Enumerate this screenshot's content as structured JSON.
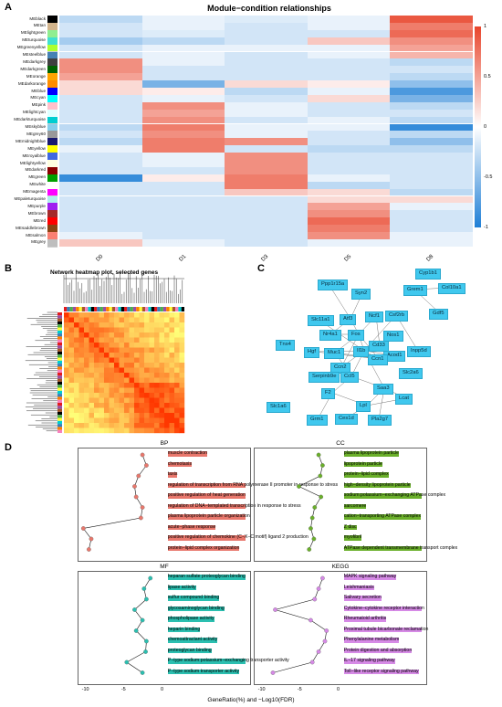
{
  "panelA": {
    "letter": "A",
    "title": "Module−condition relationships",
    "columns": [
      "D0",
      "D1",
      "D3",
      "D5",
      "D8"
    ],
    "modules": [
      {
        "name": "MEblack",
        "color": "#000000",
        "vals": [
          -0.3,
          -0.1,
          -0.15,
          -0.1,
          0.9
        ]
      },
      {
        "name": "MEtan",
        "color": "#d2b48c",
        "vals": [
          -0.2,
          -0.1,
          -0.2,
          -0.1,
          0.7
        ]
      },
      {
        "name": "MElightgreen",
        "color": "#90ee90",
        "vals": [
          -0.2,
          -0.15,
          -0.2,
          -0.2,
          0.8
        ]
      },
      {
        "name": "MEturquoise",
        "color": "#40e0d0",
        "vals": [
          -0.4,
          -0.3,
          -0.2,
          0.3,
          0.6
        ]
      },
      {
        "name": "MEgreenyellow",
        "color": "#adff2f",
        "vals": [
          -0.2,
          -0.1,
          -0.1,
          -0.1,
          0.5
        ]
      },
      {
        "name": "MEsteelblue",
        "color": "#4682b4",
        "vals": [
          -0.2,
          -0.1,
          -0.2,
          -0.1,
          0.4
        ]
      },
      {
        "name": "MEdarkgrey",
        "color": "#404040",
        "vals": [
          0.6,
          -0.1,
          -0.2,
          -0.2,
          -0.3
        ]
      },
      {
        "name": "MEdarkgreen",
        "color": "#006400",
        "vals": [
          0.6,
          -0.2,
          -0.2,
          -0.2,
          -0.2
        ]
      },
      {
        "name": "MEorange",
        "color": "#ffa500",
        "vals": [
          0.5,
          -0.2,
          -0.2,
          -0.2,
          -0.3
        ]
      },
      {
        "name": "MEdarkorange",
        "color": "#ff8c00",
        "vals": [
          0.2,
          -0.6,
          0.2,
          0.1,
          -0.5
        ]
      },
      {
        "name": "MEblue",
        "color": "#0000ff",
        "vals": [
          0.2,
          0.1,
          -0.3,
          -0.1,
          -0.8
        ]
      },
      {
        "name": "MEcyan",
        "color": "#00ffff",
        "vals": [
          -0.2,
          -0.1,
          -0.2,
          0.2,
          -0.6
        ]
      },
      {
        "name": "MEpink",
        "color": "#ffc0cb",
        "vals": [
          -0.2,
          0.6,
          -0.1,
          -0.2,
          -0.3
        ]
      },
      {
        "name": "MElightcyan",
        "color": "#e0ffff",
        "vals": [
          -0.2,
          0.5,
          -0.1,
          -0.2,
          -0.2
        ]
      },
      {
        "name": "MEdarkturquoise",
        "color": "#00ced1",
        "vals": [
          -0.2,
          0.6,
          -0.2,
          -0.1,
          -0.3
        ]
      },
      {
        "name": "MEskyblue",
        "color": "#87ceeb",
        "vals": [
          -0.3,
          0.7,
          -0.1,
          -0.1,
          -0.9
        ]
      },
      {
        "name": "MEgrey60",
        "color": "#999999",
        "vals": [
          -0.2,
          0.6,
          -0.1,
          -0.2,
          -0.3
        ]
      },
      {
        "name": "MEmidnightblue",
        "color": "#191970",
        "vals": [
          -0.3,
          0.7,
          0.6,
          -0.2,
          -0.5
        ]
      },
      {
        "name": "MEyellow",
        "color": "#ffff00",
        "vals": [
          -0.1,
          0.7,
          -0.2,
          -0.3,
          -0.3
        ]
      },
      {
        "name": "MEroyalblue",
        "color": "#4169e1",
        "vals": [
          -0.2,
          -0.1,
          0.6,
          -0.2,
          -0.2
        ]
      },
      {
        "name": "MElightyellow",
        "color": "#ffffe0",
        "vals": [
          -0.2,
          -0.1,
          0.6,
          -0.2,
          -0.2
        ]
      },
      {
        "name": "MEdarkred",
        "color": "#8b0000",
        "vals": [
          -0.2,
          -0.2,
          0.6,
          -0.2,
          -0.2
        ]
      },
      {
        "name": "MEgreen",
        "color": "#00a000",
        "vals": [
          -0.9,
          0.1,
          0.7,
          -0.1,
          -0.2
        ]
      },
      {
        "name": "MEwhite",
        "color": "#ffffff",
        "vals": [
          -0.2,
          -0.2,
          0.7,
          -0.3,
          -0.2
        ]
      },
      {
        "name": "MEmagenta",
        "color": "#ff00ff",
        "vals": [
          -0.2,
          -0.2,
          0.3,
          0.2,
          -0.3
        ]
      },
      {
        "name": "MEpaleturquoise",
        "color": "#afeeee",
        "vals": [
          -0.2,
          -0.2,
          -0.2,
          0.2,
          0.2
        ]
      },
      {
        "name": "MEpurple",
        "color": "#a020f0",
        "vals": [
          -0.2,
          -0.2,
          -0.2,
          0.5,
          -0.1
        ]
      },
      {
        "name": "MEbrown",
        "color": "#a52a2a",
        "vals": [
          -0.2,
          -0.2,
          -0.2,
          0.6,
          -0.2
        ]
      },
      {
        "name": "MEred",
        "color": "#ff0000",
        "vals": [
          -0.2,
          -0.2,
          -0.2,
          0.8,
          -0.2
        ]
      },
      {
        "name": "MEsaddlebrown",
        "color": "#8b4513",
        "vals": [
          -0.2,
          -0.2,
          -0.2,
          0.7,
          -0.2
        ]
      },
      {
        "name": "MEsalmon",
        "color": "#fa8072",
        "vals": [
          -0.1,
          -0.2,
          -0.2,
          0.6,
          -0.1
        ]
      },
      {
        "name": "MEgrey",
        "color": "#bebebe",
        "vals": [
          0.3,
          -0.1,
          -0.2,
          -0.1,
          -0.1
        ]
      }
    ],
    "legend_ticks": [
      "1",
      "0.5",
      "0",
      "-0.5",
      "-1"
    ],
    "high_color": "#e8452c",
    "low_color": "#1f7fd6"
  },
  "panelB": {
    "letter": "B",
    "title": "Network heatmap plot, selected genes"
  },
  "panelC": {
    "letter": "C",
    "nodes": [
      "Cyp1b1",
      "Ppp1r15a",
      "Grem1",
      "Col10a1",
      "Syn2",
      "Gdf5",
      "Ncf1",
      "Slc11a1",
      "Atf3",
      "Csf2rb",
      "Nr4a1",
      "Nos1",
      "Fos",
      "Inpp5d",
      "Cd33",
      "Il1b",
      "Tns4",
      "Hgf",
      "Acod1",
      "Muc1",
      "Ccn1",
      "Ccn2",
      "Serpinb9e",
      "Slc2a6",
      "Ccl5",
      "Saa3",
      "F2",
      "Lpl",
      "Lcat",
      "Slc1a6",
      "Grm1",
      "Ces1d",
      "Pla2g7"
    ]
  },
  "panelD": {
    "letter": "D",
    "xlabel": "GeneRatio(%) and −Log10(FDR)",
    "panels": [
      {
        "title": "BP",
        "color": "#e8776c",
        "labels": [
          "muscle contraction",
          "chemotaxis",
          "taxis",
          "regulation of transcription from RNA polymerase II promoter in response to stress",
          "positive regulation of heat generation",
          "regulation of DNA−templated transcription in response to stress",
          "plasma lipoprotein particle organization",
          "acute−phase response",
          "positive regulation of chemokine (C−X−C motif) ligand 2 production",
          "protein−lipid complex organization"
        ]
      },
      {
        "title": "CC",
        "color": "#6aaf2a",
        "labels": [
          "plasma lipoprotein particle",
          "lipoprotein particle",
          "protein−lipid complex",
          "high−density lipoprotein particle",
          "sodium:potassium−exchanging ATPase complex",
          "sarcomere",
          "cation−transporting ATPase complex",
          "Z disc",
          "myofibril",
          "ATPase dependent transmembrane transport complex"
        ]
      },
      {
        "title": "MF",
        "color": "#2bbfb0",
        "labels": [
          "heparan sulfate proteoglycan binding",
          "lipase activity",
          "sulfur compound binding",
          "glycosaminoglycan binding",
          "phospholipase activity",
          "heparin binding",
          "chemoattractant activity",
          "proteoglycan binding",
          "P−type sodium:potassium−exchanging transporter activity",
          "P−type sodium transporter activity"
        ]
      },
      {
        "title": "KEGG",
        "color": "#d68ae6",
        "labels": [
          "MAPK signaling pathway",
          "Leishmaniasis",
          "Salivary secretion",
          "Cytokine−cytokine receptor interaction",
          "Rheumatoid arthritis",
          "Proximal tubule bicarbonate reclamation",
          "Phenylalanine metabolism",
          "Protein digestion and absorption",
          "IL−17 signaling pathway",
          "Toll−like receptor signaling pathway"
        ]
      }
    ],
    "x_ticks": [
      "-10",
      "-5",
      "0"
    ]
  }
}
